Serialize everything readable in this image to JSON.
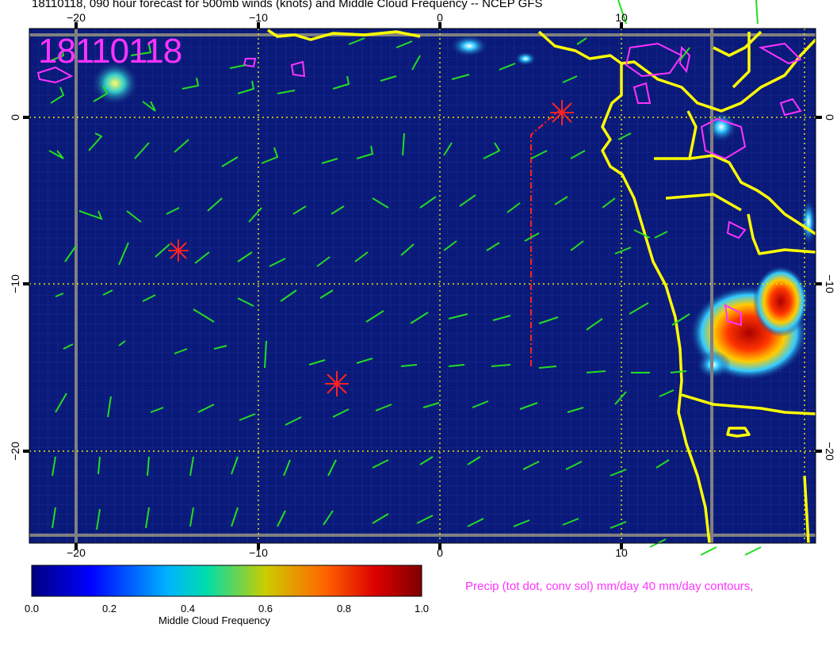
{
  "title": "18110118, 090 hour forecast for 500mb winds (knots) and Middle Cloud Frequency -- NCEP GFS",
  "stamp": "18110118",
  "axes": {
    "x_ticks": [
      "−20",
      "−10",
      "0",
      "10"
    ],
    "y_ticks": [
      "0",
      "−10",
      "−20"
    ]
  },
  "colorbar": {
    "label": "Middle Cloud Frequency",
    "ticks": [
      "0.0",
      "0.2",
      "0.4",
      "0.6",
      "0.8",
      "1.0"
    ],
    "colors": [
      "#00007f",
      "#0000ff",
      "#00c8ff",
      "#c8c800",
      "#ff3200",
      "#7f0000"
    ]
  },
  "precip_note": "Precip (tot dot, conv sol) mm/day 40 mm/day contours,",
  "colors": {
    "background": "#0a1a7a",
    "coast": "#ffff00",
    "barb": "#22dd22",
    "precip": "#ff33ff",
    "marker": "#ff2222",
    "grid_dotted": "#e8e800"
  },
  "markers": [
    "storm-marker-1",
    "storm-marker-2",
    "storm-marker-3"
  ]
}
